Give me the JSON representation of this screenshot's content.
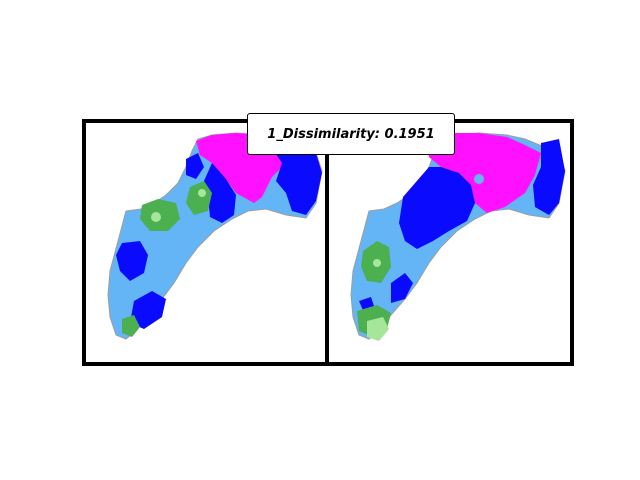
{
  "title": "1_Dissimilarity: 0.1951",
  "colors": {
    "light_blue": "#64b5f6",
    "blue": "#0a0aff",
    "magenta": "#ff10ff",
    "green": "#4caf50",
    "light_green": "#a5e69a",
    "outline": "#9e9e9e",
    "frame": "#000000"
  },
  "panels": [
    {
      "name": "left-map"
    },
    {
      "name": "right-map"
    }
  ]
}
